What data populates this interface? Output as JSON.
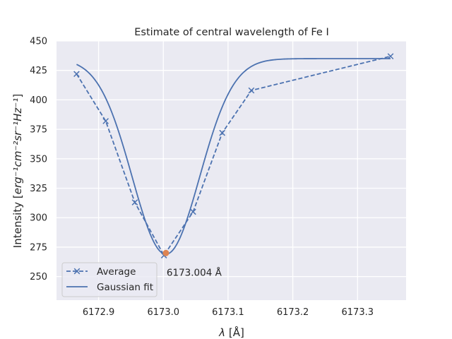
{
  "chart_data": {
    "type": "line",
    "title": "Estimate of central wavelength of Fe I",
    "xlabel_symbol": "λ",
    "xlabel_unit": "[Å]",
    "ylabel_prefix": "Intensity [",
    "ylabel_math": "erg⁻¹cm⁻²sr⁻¹Hz⁻¹",
    "ylabel_suffix": "]",
    "xlim": [
      6172.835,
      6173.375
    ],
    "ylim": [
      230,
      450
    ],
    "xticks": [
      6172.9,
      6173.0,
      6173.1,
      6173.2,
      6173.3
    ],
    "xtick_labels": [
      "6172.9",
      "6173.0",
      "6173.1",
      "6173.2",
      "6173.3"
    ],
    "yticks": [
      250,
      275,
      300,
      325,
      350,
      375,
      400,
      425,
      450
    ],
    "ytick_labels": [
      "250",
      "275",
      "300",
      "325",
      "350",
      "375",
      "400",
      "425",
      "450"
    ],
    "grid": true,
    "legend_position": "lower-left",
    "series": [
      {
        "name": "Average",
        "style": "dashed",
        "marker": "x",
        "color": "#4c72b0",
        "x": [
          6172.866,
          6172.911,
          6172.956,
          6173.001,
          6173.046,
          6173.091,
          6173.136,
          6173.351
        ],
        "y": [
          422,
          382,
          313,
          268,
          305,
          372,
          408,
          437
        ]
      },
      {
        "name": "Gaussian fit",
        "style": "solid",
        "color": "#4c72b0",
        "model": {
          "baseline": 435,
          "amplitude": 166,
          "center": 6173.004,
          "sigma": 0.052
        }
      }
    ],
    "annotation": {
      "text": "6173.004 Å",
      "x": 6173.004,
      "y": 270,
      "marker_color": "#dd8452"
    },
    "colors": {
      "plot_background": "#eaeaf2",
      "grid": "#ffffff",
      "line": "#4c72b0",
      "highlight": "#dd8452"
    }
  }
}
